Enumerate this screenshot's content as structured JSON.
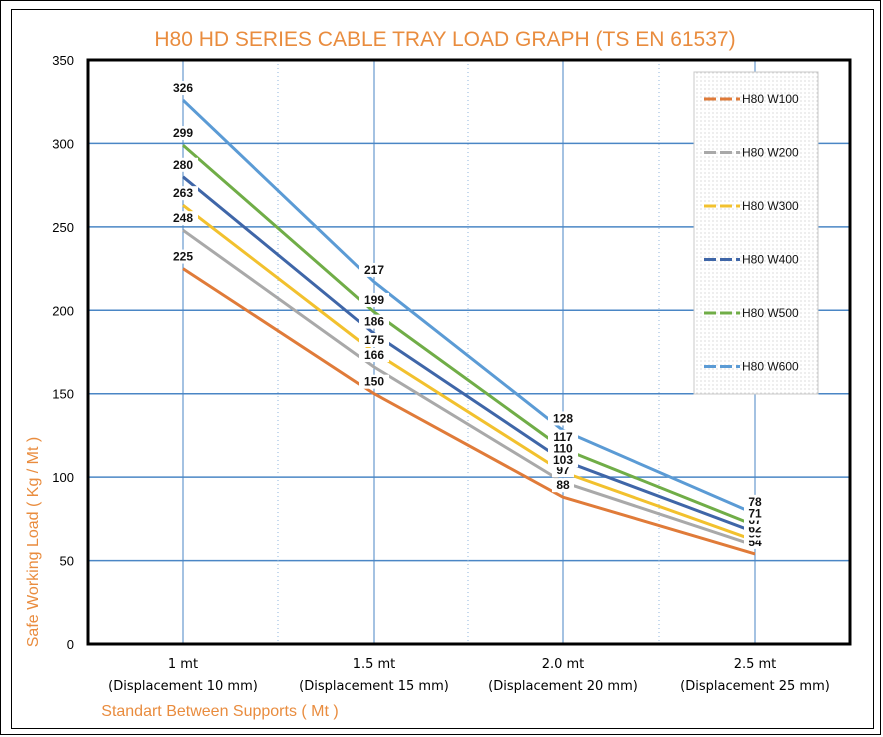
{
  "chart_data": {
    "type": "line",
    "title": "H80 HD SERIES CABLE TRAY LOAD GRAPH (TS EN 61537)",
    "xlabel": "Standart Between Supports ( Mt )",
    "ylabel": "Safe Working Load ( Kg / Mt )",
    "ylim": [
      0,
      350
    ],
    "yticks": [
      0,
      50,
      100,
      150,
      200,
      250,
      300,
      350
    ],
    "categories": [
      {
        "top": "1 mt",
        "bottom": "(Displacement 10 mm)"
      },
      {
        "top": "1.5 mt",
        "bottom": "(Displacement 15 mm)"
      },
      {
        "top": "2.0 mt",
        "bottom": "(Displacement 20 mm)"
      },
      {
        "top": "2.5 mt",
        "bottom": "(Displacement 25 mm)"
      }
    ],
    "series": [
      {
        "name": "H80 W100",
        "color": "#e07b39",
        "values": [
          225,
          150,
          88,
          54
        ]
      },
      {
        "name": "H80 W200",
        "color": "#a9a9a9",
        "values": [
          248,
          166,
          97,
          59
        ]
      },
      {
        "name": "H80 W300",
        "color": "#f2c12e",
        "values": [
          263,
          175,
          103,
          62
        ]
      },
      {
        "name": "H80 W400",
        "color": "#3f66a8",
        "values": [
          280,
          186,
          110,
          67
        ]
      },
      {
        "name": "H80 W500",
        "color": "#70ad47",
        "values": [
          299,
          199,
          117,
          71
        ]
      },
      {
        "name": "H80 W600",
        "color": "#5b9bd5",
        "values": [
          326,
          217,
          128,
          78
        ]
      }
    ],
    "grid": true,
    "legend": "top-right"
  }
}
